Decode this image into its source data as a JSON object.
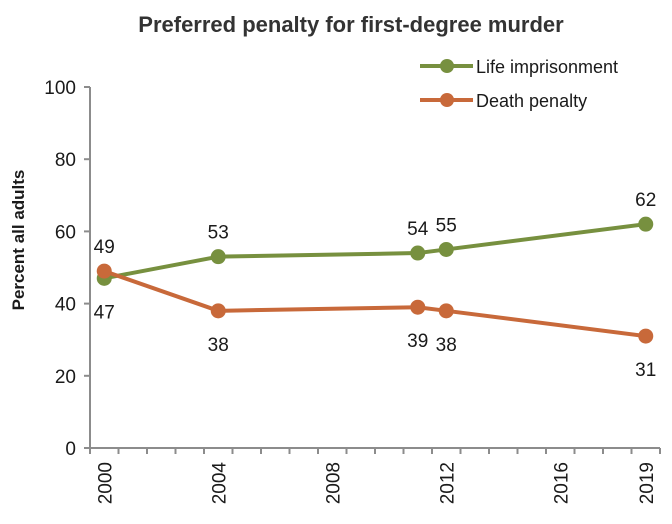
{
  "chart_data": {
    "type": "line",
    "title": "Preferred penalty for first-degree murder",
    "xlabel": "",
    "ylabel": "Percent all adults",
    "x_range": [
      2000,
      2019
    ],
    "ylim": [
      0,
      100
    ],
    "y_ticks": [
      0,
      20,
      40,
      60,
      80,
      100
    ],
    "x_tick_labels": [
      "2000",
      "2004",
      "2008",
      "2012",
      "2016",
      "2019"
    ],
    "x_tick_values": [
      2000,
      2004,
      2008,
      2012,
      2016,
      2019
    ],
    "grid": false,
    "legend_position": "top-right",
    "series": [
      {
        "name": "Life imprisonment",
        "color": "#77903f",
        "x": [
          2000,
          2004,
          2011,
          2012,
          2019
        ],
        "values": [
          47,
          53,
          54,
          55,
          62
        ],
        "label_position": [
          "below",
          "above",
          "above",
          "above",
          "above"
        ]
      },
      {
        "name": "Death penalty",
        "color": "#c8693a",
        "x": [
          2000,
          2004,
          2011,
          2012,
          2019
        ],
        "values": [
          49,
          38,
          39,
          38,
          31
        ],
        "label_position": [
          "above",
          "below",
          "below",
          "below",
          "below"
        ]
      }
    ]
  }
}
